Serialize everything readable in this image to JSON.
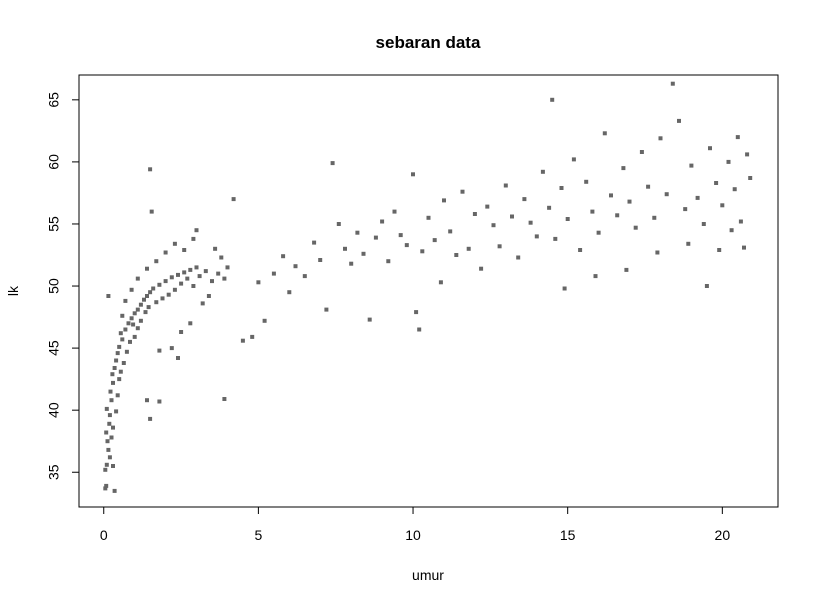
{
  "chart_data": {
    "type": "scatter",
    "title": "sebaran data",
    "xlabel": "umur",
    "ylabel": "lk",
    "xlim": [
      -0.8,
      21.8
    ],
    "ylim": [
      32.2,
      67.0
    ],
    "xticks": [
      0,
      5,
      10,
      15,
      20
    ],
    "yticks": [
      35,
      40,
      45,
      50,
      55,
      60,
      65
    ],
    "point_color": "#666666",
    "grid": false,
    "legend": "none",
    "points": [
      [
        0.05,
        33.7
      ],
      [
        0.08,
        33.9
      ],
      [
        0.35,
        33.5
      ],
      [
        0.05,
        35.2
      ],
      [
        0.1,
        35.6
      ],
      [
        0.15,
        36.8
      ],
      [
        0.12,
        37.5
      ],
      [
        0.08,
        38.2
      ],
      [
        0.18,
        38.9
      ],
      [
        0.2,
        39.6
      ],
      [
        0.1,
        40.1
      ],
      [
        0.25,
        40.8
      ],
      [
        0.22,
        41.5
      ],
      [
        0.3,
        42.2
      ],
      [
        0.28,
        42.9
      ],
      [
        0.35,
        43.4
      ],
      [
        0.4,
        44.0
      ],
      [
        0.45,
        44.6
      ],
      [
        0.5,
        45.1
      ],
      [
        0.6,
        45.7
      ],
      [
        0.55,
        46.2
      ],
      [
        0.7,
        46.5
      ],
      [
        0.8,
        47.0
      ],
      [
        0.9,
        47.4
      ],
      [
        1.0,
        47.8
      ],
      [
        0.95,
        46.9
      ],
      [
        1.1,
        48.1
      ],
      [
        1.2,
        48.5
      ],
      [
        1.3,
        48.9
      ],
      [
        1.4,
        49.2
      ],
      [
        1.5,
        49.5
      ],
      [
        1.6,
        49.8
      ],
      [
        1.8,
        50.1
      ],
      [
        2.0,
        50.4
      ],
      [
        2.2,
        50.7
      ],
      [
        2.4,
        50.9
      ],
      [
        2.6,
        51.1
      ],
      [
        2.8,
        51.3
      ],
      [
        3.0,
        51.5
      ],
      [
        0.15,
        49.2
      ],
      [
        1.5,
        59.4
      ],
      [
        1.55,
        56.0
      ],
      [
        1.5,
        39.3
      ],
      [
        1.4,
        40.8
      ],
      [
        1.8,
        40.7
      ],
      [
        3.9,
        40.9
      ],
      [
        4.2,
        57.0
      ],
      [
        0.3,
        35.5
      ],
      [
        0.2,
        36.2
      ],
      [
        0.25,
        37.8
      ],
      [
        0.3,
        38.6
      ],
      [
        0.4,
        39.9
      ],
      [
        0.45,
        41.2
      ],
      [
        0.5,
        42.5
      ],
      [
        0.55,
        43.1
      ],
      [
        0.65,
        43.8
      ],
      [
        0.75,
        44.7
      ],
      [
        0.85,
        45.5
      ],
      [
        1.0,
        45.9
      ],
      [
        1.1,
        46.6
      ],
      [
        1.2,
        47.2
      ],
      [
        1.35,
        47.9
      ],
      [
        1.45,
        48.3
      ],
      [
        1.7,
        48.7
      ],
      [
        1.9,
        49.0
      ],
      [
        2.1,
        49.3
      ],
      [
        2.3,
        49.7
      ],
      [
        2.5,
        50.2
      ],
      [
        2.7,
        50.6
      ],
      [
        2.9,
        50.0
      ],
      [
        3.1,
        50.8
      ],
      [
        3.3,
        51.2
      ],
      [
        3.5,
        50.4
      ],
      [
        3.7,
        51.0
      ],
      [
        3.9,
        50.6
      ],
      [
        4.0,
        51.5
      ],
      [
        3.8,
        52.3
      ],
      [
        3.6,
        53.0
      ],
      [
        3.4,
        49.2
      ],
      [
        3.2,
        48.6
      ],
      [
        2.9,
        53.8
      ],
      [
        2.6,
        52.9
      ],
      [
        2.3,
        53.4
      ],
      [
        2.0,
        52.7
      ],
      [
        1.7,
        52.0
      ],
      [
        1.4,
        51.4
      ],
      [
        1.1,
        50.6
      ],
      [
        0.9,
        49.7
      ],
      [
        0.7,
        48.8
      ],
      [
        0.6,
        47.6
      ],
      [
        2.2,
        45.0
      ],
      [
        2.5,
        46.3
      ],
      [
        2.8,
        47.0
      ],
      [
        3.0,
        54.5
      ],
      [
        2.4,
        44.2
      ],
      [
        1.8,
        44.8
      ],
      [
        4.8,
        45.9
      ],
      [
        4.5,
        45.6
      ],
      [
        5.2,
        47.2
      ],
      [
        5.5,
        51.0
      ],
      [
        5.0,
        50.3
      ],
      [
        5.8,
        52.4
      ],
      [
        6.2,
        51.6
      ],
      [
        6.0,
        49.5
      ],
      [
        6.5,
        50.8
      ],
      [
        6.8,
        53.5
      ],
      [
        7.0,
        52.1
      ],
      [
        7.2,
        48.1
      ],
      [
        7.4,
        59.9
      ],
      [
        7.6,
        55.0
      ],
      [
        7.8,
        53.0
      ],
      [
        8.0,
        51.8
      ],
      [
        8.2,
        54.3
      ],
      [
        8.4,
        52.6
      ],
      [
        8.6,
        47.3
      ],
      [
        8.8,
        53.9
      ],
      [
        9.0,
        55.2
      ],
      [
        9.2,
        52.0
      ],
      [
        9.4,
        56.0
      ],
      [
        9.6,
        54.1
      ],
      [
        9.8,
        53.3
      ],
      [
        10.0,
        59.0
      ],
      [
        10.1,
        47.9
      ],
      [
        10.2,
        46.5
      ],
      [
        10.3,
        52.8
      ],
      [
        10.5,
        55.5
      ],
      [
        10.7,
        53.7
      ],
      [
        10.9,
        50.3
      ],
      [
        11.0,
        56.9
      ],
      [
        11.2,
        54.4
      ],
      [
        11.4,
        52.5
      ],
      [
        11.6,
        57.6
      ],
      [
        11.8,
        53.0
      ],
      [
        12.0,
        55.8
      ],
      [
        12.2,
        51.4
      ],
      [
        12.4,
        56.4
      ],
      [
        12.6,
        54.9
      ],
      [
        12.8,
        53.2
      ],
      [
        13.0,
        58.1
      ],
      [
        13.2,
        55.6
      ],
      [
        13.4,
        52.3
      ],
      [
        13.6,
        57.0
      ],
      [
        13.8,
        55.1
      ],
      [
        14.0,
        54.0
      ],
      [
        14.2,
        59.2
      ],
      [
        14.5,
        65.0
      ],
      [
        14.4,
        56.3
      ],
      [
        14.6,
        53.8
      ],
      [
        14.8,
        57.9
      ],
      [
        15.0,
        55.4
      ],
      [
        15.2,
        60.2
      ],
      [
        15.4,
        52.9
      ],
      [
        15.6,
        58.4
      ],
      [
        15.8,
        56.0
      ],
      [
        16.0,
        54.3
      ],
      [
        16.2,
        62.3
      ],
      [
        16.4,
        57.3
      ],
      [
        16.6,
        55.7
      ],
      [
        16.8,
        59.5
      ],
      [
        17.0,
        56.8
      ],
      [
        17.2,
        54.7
      ],
      [
        17.4,
        60.8
      ],
      [
        17.6,
        58.0
      ],
      [
        17.8,
        55.5
      ],
      [
        18.0,
        61.9
      ],
      [
        18.2,
        57.4
      ],
      [
        18.4,
        66.3
      ],
      [
        18.6,
        63.3
      ],
      [
        18.8,
        56.2
      ],
      [
        19.0,
        59.7
      ],
      [
        19.2,
        57.1
      ],
      [
        19.4,
        55.0
      ],
      [
        19.5,
        50.0
      ],
      [
        19.6,
        61.1
      ],
      [
        19.8,
        58.3
      ],
      [
        20.0,
        56.5
      ],
      [
        20.2,
        60.0
      ],
      [
        20.4,
        57.8
      ],
      [
        20.6,
        55.2
      ],
      [
        20.7,
        53.1
      ],
      [
        20.8,
        60.6
      ],
      [
        20.9,
        58.7
      ],
      [
        20.5,
        62.0
      ],
      [
        20.3,
        54.5
      ],
      [
        19.9,
        52.9
      ],
      [
        18.9,
        53.4
      ],
      [
        17.9,
        52.7
      ],
      [
        16.9,
        51.3
      ],
      [
        15.9,
        50.8
      ],
      [
        14.9,
        49.8
      ]
    ]
  }
}
